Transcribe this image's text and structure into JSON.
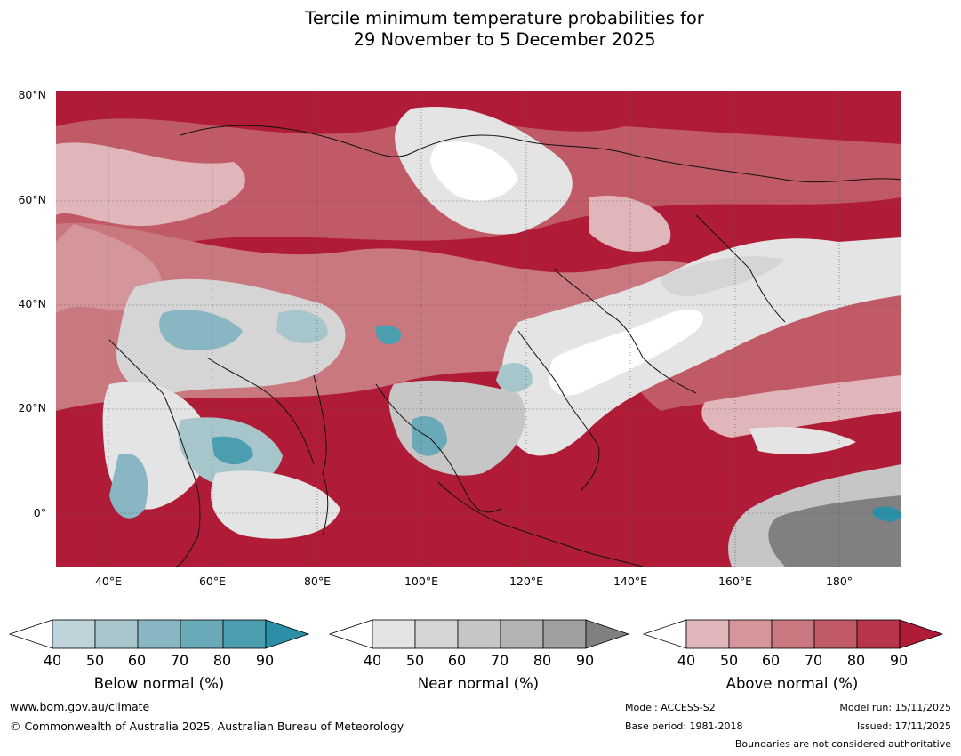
{
  "title": {
    "line1": "Tercile minimum temperature probabilities for",
    "line2": "29 November to 5 December 2025"
  },
  "map": {
    "lat_ticks": [
      "80°N",
      "60°N",
      "40°N",
      "20°N",
      "0°"
    ],
    "lon_ticks": [
      "40°E",
      "60°E",
      "80°E",
      "100°E",
      "120°E",
      "140°E",
      "160°E",
      "180°"
    ]
  },
  "colorbars": [
    {
      "label": "Below normal (%)",
      "ticks": [
        "40",
        "50",
        "60",
        "70",
        "80",
        "90"
      ],
      "colors": [
        "#bfd3da",
        "#a6c6cc",
        "#88b6c2",
        "#6aa9b7",
        "#4b9db0",
        "#2b8fa7"
      ]
    },
    {
      "label": "Near normal (%)",
      "ticks": [
        "40",
        "50",
        "60",
        "70",
        "80",
        "90"
      ],
      "colors": [
        "#e4e4e4",
        "#d5d5d5",
        "#c6c6c6",
        "#b4b4b4",
        "#a0a0a0",
        "#808080"
      ]
    },
    {
      "label": "Above normal (%)",
      "ticks": [
        "40",
        "50",
        "60",
        "70",
        "80",
        "90"
      ],
      "colors": [
        "#e1b6bb",
        "#d4959b",
        "#c97880",
        "#c05a67",
        "#b7344a",
        "#b01c38"
      ]
    }
  ],
  "footer": {
    "website": "www.bom.gov.au/climate",
    "copyright": "© Commonwealth of Australia 2025, Australian Bureau of Meteorology",
    "model": "Model: ACCESS-S2",
    "base_period": "Base period: 1981-2018",
    "model_run": "Model run: 15/11/2025",
    "issued": "Issued: 17/11/2025",
    "disclaimer": "Boundaries are not considered authoritative"
  }
}
